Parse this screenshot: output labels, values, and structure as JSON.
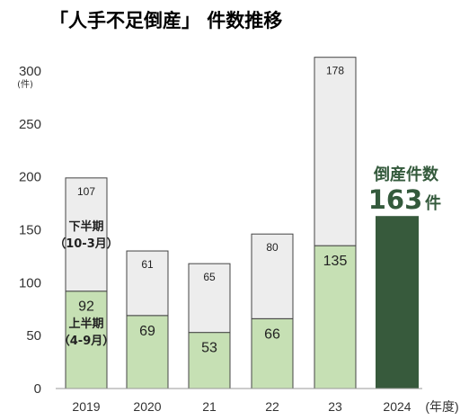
{
  "title": "「人手不足倒産」 件数推移",
  "chart_data": {
    "type": "bar",
    "stacked": true,
    "categories": [
      "2019",
      "2020",
      "21",
      "22",
      "23",
      "2024"
    ],
    "x_unit": "(年度)",
    "y_unit": "(件)",
    "ylim": [
      0,
      300
    ],
    "yticks": [
      0,
      50,
      100,
      150,
      200,
      250,
      300
    ],
    "series": [
      {
        "name": "上半期（4-9月）",
        "values": [
          92,
          69,
          53,
          66,
          135,
          null
        ],
        "color": "#c6e0b4"
      },
      {
        "name": "下半期（10-3月）",
        "values": [
          107,
          61,
          65,
          80,
          178,
          null
        ],
        "color": "#ededed"
      },
      {
        "name": "倒産件数",
        "values": [
          null,
          null,
          null,
          null,
          null,
          163
        ],
        "color": "#375a3c"
      }
    ],
    "legend_inline": {
      "lower_line1": "上半期",
      "lower_line2": "（4-9月）",
      "upper_line1": "下半期",
      "upper_line2": "（10-3月）"
    },
    "callout": {
      "label": "倒産件数",
      "value": "163",
      "unit": "件"
    }
  }
}
